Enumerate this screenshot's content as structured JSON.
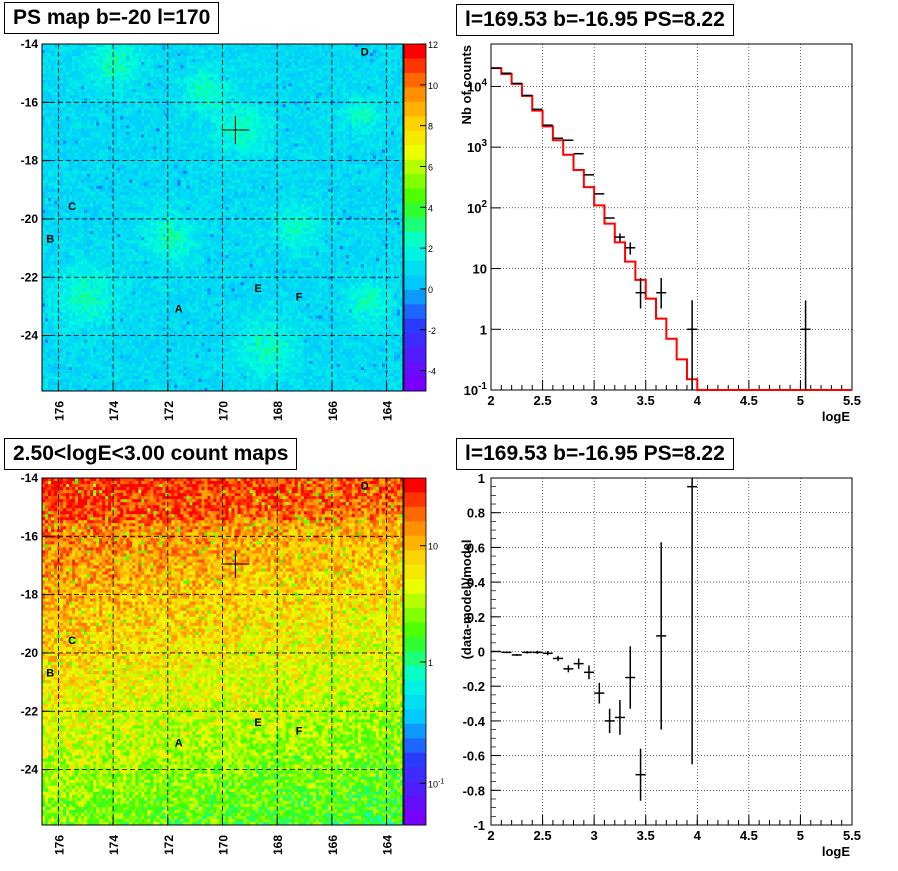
{
  "titles": {
    "ps_map": "PS map b=-20 l=170",
    "spectrum": "l=169.53 b=-16.95 PS=8.22",
    "count_map": "2.50<logE<3.00 count maps",
    "residual": "l=169.53 b=-16.95 PS=8.22"
  },
  "chart_data": [
    {
      "type": "heatmap",
      "panel": "ps-map",
      "title": "PS map b=-20 l=170",
      "x_ticks": [
        "176",
        "174",
        "172",
        "170",
        "168",
        "166",
        "164"
      ],
      "y_ticks": [
        "-14",
        "-16",
        "-18",
        "-20",
        "-22",
        "-24"
      ],
      "x_range": [
        176.6,
        163.4
      ],
      "y_range": [
        -25.9,
        -14
      ],
      "colorbar": {
        "ticks": [
          "12",
          "10",
          "8",
          "6",
          "4",
          "2",
          "0",
          "-2",
          "-4"
        ],
        "range": [
          -5,
          12
        ]
      },
      "source_labels": [
        {
          "label": "D",
          "l": 164.8,
          "b": -14.4
        },
        {
          "label": "C",
          "l": 175.5,
          "b": -19.7
        },
        {
          "label": "B",
          "l": 176.3,
          "b": -20.8
        },
        {
          "label": "E",
          "l": 168.7,
          "b": -22.5
        },
        {
          "label": "F",
          "l": 167.2,
          "b": -22.8
        },
        {
          "label": "A",
          "l": 171.6,
          "b": -23.2
        }
      ],
      "marker": {
        "l": 169.53,
        "b": -16.95
      }
    },
    {
      "type": "line",
      "panel": "spectrum",
      "title": "l=169.53 b=-16.95 PS=8.22",
      "xlabel": "logE",
      "ylabel": "Nb of counts",
      "xlim": [
        2,
        5.5
      ],
      "ylim": [
        0.1,
        50000
      ],
      "log_y": true,
      "grid": true,
      "x_ticks": [
        "2",
        "2.5",
        "3",
        "3.5",
        "4",
        "4.5",
        "5",
        "5.5"
      ],
      "y_ticks": [
        "10^-1",
        "1",
        "10",
        "10^2",
        "10^3",
        "10^4"
      ],
      "series": [
        {
          "kind": "step",
          "color": "#ff0000",
          "bins": [
            2.0,
            2.1,
            2.2,
            2.3,
            2.4,
            2.5,
            2.6,
            2.7,
            2.8,
            2.9,
            3.0,
            3.1,
            3.2,
            3.3,
            3.4,
            3.5,
            3.6,
            3.7,
            3.8,
            3.9,
            4.0,
            4.1,
            4.2,
            4.3,
            4.4,
            4.5,
            4.6,
            4.7,
            4.8,
            4.9,
            5.0,
            5.1,
            5.2,
            5.3,
            5.4,
            5.5
          ],
          "values": [
            20000,
            16000,
            11000,
            7000,
            4000,
            2200,
            1300,
            750,
            420,
            220,
            110,
            55,
            27,
            13,
            6.5,
            3.2,
            1.5,
            0.7,
            0.32,
            0.15,
            0.1,
            0.1,
            0.1,
            0.1,
            0.1,
            0.1,
            0.1,
            0.1,
            0.1,
            0.1,
            0.1,
            0.1,
            0.1,
            0.1,
            0.1
          ]
        },
        {
          "kind": "points",
          "color": "#000000",
          "x": [
            2.05,
            2.15,
            2.25,
            2.35,
            2.45,
            2.55,
            2.65,
            2.75,
            2.85,
            2.95,
            3.05,
            3.15,
            3.25,
            3.35,
            3.45,
            3.65,
            3.95,
            5.05
          ],
          "y": [
            20000,
            16500,
            11200,
            7100,
            4200,
            2300,
            1400,
            1300,
            780,
            350,
            170,
            68,
            33,
            22,
            4,
            4,
            1,
            1
          ],
          "y_err_low": [
            0,
            0,
            0,
            0,
            0,
            0,
            0,
            0,
            0,
            0,
            0,
            0,
            5,
            5,
            1.8,
            1.8,
            0.9,
            0.9
          ],
          "y_err_high": [
            0,
            0,
            0,
            0,
            0,
            0,
            0,
            0,
            0,
            0,
            0,
            0,
            5,
            5,
            3,
            3,
            2,
            2
          ]
        }
      ]
    },
    {
      "type": "heatmap",
      "panel": "count-map",
      "title": "2.50<logE<3.00 count maps",
      "x_ticks": [
        "176",
        "174",
        "172",
        "170",
        "168",
        "166",
        "164"
      ],
      "y_ticks": [
        "-14",
        "-16",
        "-18",
        "-20",
        "-22",
        "-24"
      ],
      "x_range": [
        176.6,
        163.4
      ],
      "y_range": [
        -25.9,
        -14
      ],
      "colorbar": {
        "ticks": [
          "10",
          "1",
          "10^-1"
        ],
        "log": true
      },
      "source_labels": [
        {
          "label": "D",
          "l": 164.8,
          "b": -14.4
        },
        {
          "label": "C",
          "l": 175.5,
          "b": -19.7
        },
        {
          "label": "B",
          "l": 176.3,
          "b": -20.8
        },
        {
          "label": "E",
          "l": 168.7,
          "b": -22.5
        },
        {
          "label": "F",
          "l": 167.2,
          "b": -22.8
        },
        {
          "label": "A",
          "l": 171.6,
          "b": -23.2
        }
      ],
      "marker": {
        "l": 169.53,
        "b": -16.95
      }
    },
    {
      "type": "scatter",
      "panel": "residual",
      "title": "l=169.53 b=-16.95 PS=8.22",
      "xlabel": "logE",
      "ylabel": "(data-model)/model",
      "xlim": [
        2,
        5.5
      ],
      "ylim": [
        -1,
        1
      ],
      "grid": true,
      "x_ticks": [
        "2",
        "2.5",
        "3",
        "3.5",
        "4",
        "4.5",
        "5",
        "5.5"
      ],
      "y_ticks": [
        "-1",
        "-0.8",
        "-0.6",
        "-0.4",
        "-0.2",
        "0",
        "0.2",
        "0.4",
        "0.6",
        "0.8",
        "1"
      ],
      "series": [
        {
          "kind": "points",
          "color": "#000000",
          "x": [
            2.05,
            2.15,
            2.25,
            2.35,
            2.45,
            2.55,
            2.65,
            2.75,
            2.85,
            2.95,
            3.05,
            3.15,
            3.25,
            3.35,
            3.45,
            3.65,
            3.95
          ],
          "y": [
            0.0,
            -0.005,
            -0.02,
            -0.005,
            -0.005,
            -0.01,
            -0.04,
            -0.1,
            -0.07,
            -0.12,
            -0.24,
            -0.4,
            -0.38,
            -0.15,
            -0.71,
            0.09,
            0.95
          ],
          "y_err": [
            0.003,
            0.004,
            0.005,
            0.007,
            0.009,
            0.012,
            0.015,
            0.02,
            0.03,
            0.04,
            0.06,
            0.07,
            0.1,
            0.18,
            0.15,
            0.54,
            1.6
          ]
        }
      ]
    }
  ]
}
